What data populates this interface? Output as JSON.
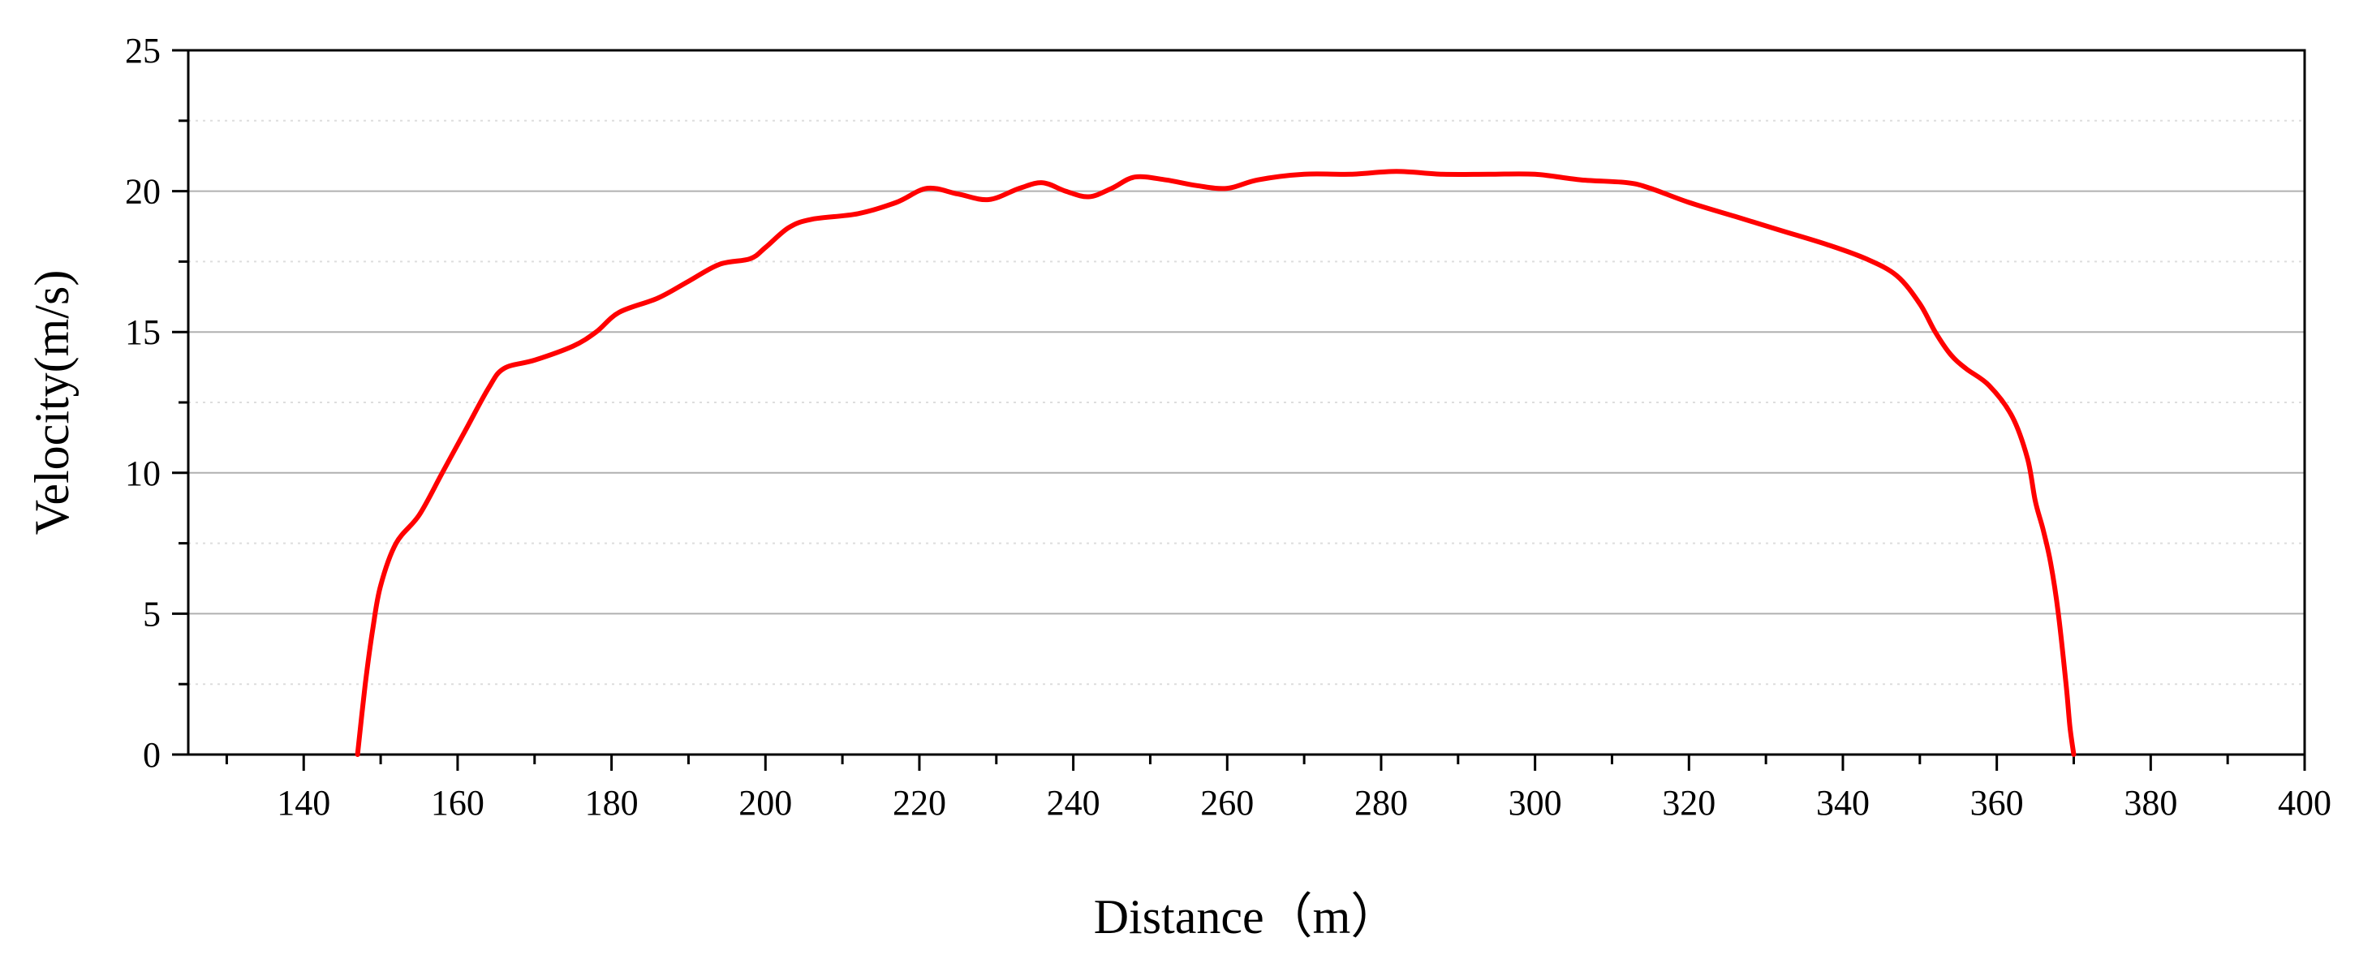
{
  "chart_data": {
    "type": "line",
    "title": "",
    "xlabel": "Distance（m）",
    "ylabel": "Velocity(m/s)",
    "xlim": [
      125,
      400
    ],
    "ylim": [
      0,
      25
    ],
    "x_ticks": [
      140,
      160,
      180,
      200,
      220,
      240,
      260,
      280,
      300,
      320,
      340,
      360,
      380,
      400
    ],
    "y_ticks": [
      0,
      5,
      10,
      15,
      20,
      25
    ],
    "grid": "horizontal major and minor",
    "legend": "none",
    "series": [
      {
        "color": "#ff0000",
        "x": [
          147,
          148,
          149,
          150,
          152,
          155,
          158,
          161,
          164,
          166,
          170,
          175,
          178,
          181,
          186,
          190,
          194,
          198,
          200,
          203,
          206,
          212,
          217,
          221,
          225,
          229,
          233,
          236,
          239,
          242,
          245,
          248,
          252,
          256,
          260,
          264,
          270,
          276,
          282,
          288,
          294,
          300,
          306,
          312,
          315,
          320,
          326,
          332,
          338,
          343,
          347,
          350,
          352,
          354,
          356,
          359,
          362,
          364,
          365,
          366,
          367,
          368,
          369,
          369.5,
          370
        ],
        "y": [
          0,
          2.5,
          4.5,
          6.0,
          7.5,
          8.5,
          10.0,
          11.5,
          13.0,
          13.7,
          14.0,
          14.5,
          15.0,
          15.7,
          16.2,
          16.8,
          17.4,
          17.6,
          18.0,
          18.7,
          19.0,
          19.2,
          19.6,
          20.1,
          19.9,
          19.7,
          20.1,
          20.3,
          20.0,
          19.8,
          20.1,
          20.5,
          20.4,
          20.2,
          20.1,
          20.4,
          20.6,
          20.6,
          20.7,
          20.6,
          20.6,
          20.6,
          20.4,
          20.3,
          20.1,
          19.6,
          19.1,
          18.6,
          18.1,
          17.6,
          17.0,
          16.0,
          15.0,
          14.2,
          13.7,
          13.1,
          12.0,
          10.5,
          9.0,
          8.0,
          6.8,
          5.0,
          2.5,
          1.0,
          0
        ]
      }
    ]
  }
}
